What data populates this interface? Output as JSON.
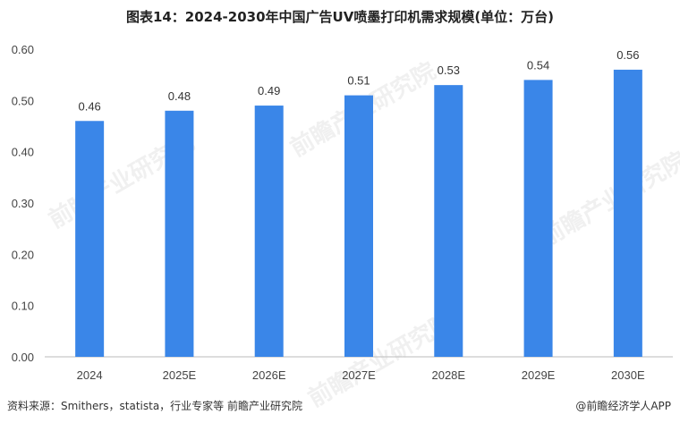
{
  "chart_data": {
    "type": "bar",
    "title": "图表14：2024-2030年中国广告UV喷墨打印机需求规模(单位：万台)",
    "categories": [
      "2024",
      "2025E",
      "2026E",
      "2027E",
      "2028E",
      "2029E",
      "2030E"
    ],
    "values": [
      0.46,
      0.48,
      0.49,
      0.51,
      0.53,
      0.54,
      0.56
    ],
    "data_labels": [
      "0.46",
      "0.48",
      "0.49",
      "0.51",
      "0.53",
      "0.54",
      "0.56"
    ],
    "y_ticks": [
      "0.00",
      "0.10",
      "0.20",
      "0.30",
      "0.40",
      "0.50",
      "0.60"
    ],
    "ylim": [
      0,
      0.6
    ],
    "grid": false,
    "legend": "none",
    "bar_color": "#3a86e8"
  },
  "footer": {
    "source": "资料来源：Smithers，statista，行业专家等 前瞻产业研究院",
    "brand": "@前瞻经济学人APP"
  },
  "watermark_text": "前瞻产业研究院"
}
